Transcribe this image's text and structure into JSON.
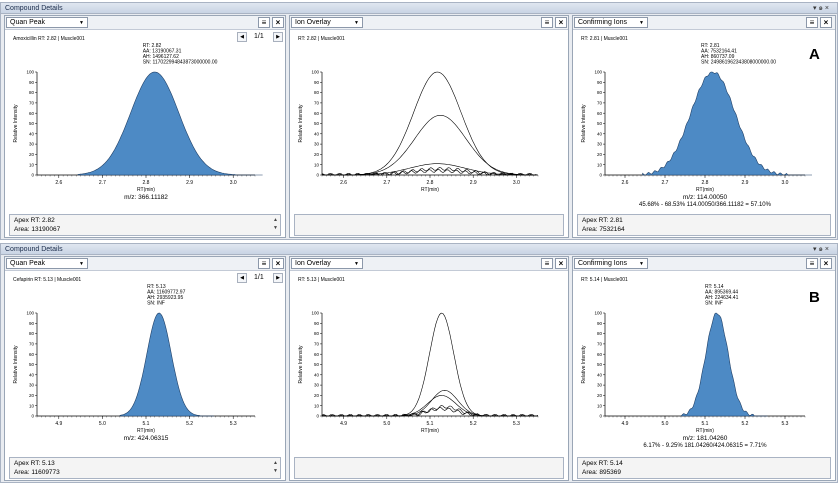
{
  "sections": [
    {
      "id": "A",
      "title": "Compound Details",
      "controls": "▾ ๑ ×",
      "letter": "A",
      "quan": {
        "dropdown": "Quan Peak",
        "page": "1/1",
        "header": "Amoxicillin  RT: 2.82 | Muscle001",
        "annotations": [
          "RT: 2.82",
          "AA: 13190067.31",
          "AH: 1496127.62",
          "SN: 117022994843873000000.00"
        ],
        "y_label": "Relative Intensity",
        "x_label": "RT(min)",
        "mz": "m/z: 366.11182",
        "info": [
          "Apex RT: 2.82",
          "Area: 13190067"
        ]
      },
      "overlay": {
        "dropdown": "Ion Overlay",
        "header": "RT: 2.82 | Muscle001",
        "y_label": "Relative Intensity",
        "x_label": "RT(min)"
      },
      "confirm": {
        "dropdown": "Confirming Ions",
        "header": "RT: 2.81 | Muscle001",
        "annotations": [
          "RT: 2.81",
          "AA: 7532164.41",
          "AH: 860737.09",
          "SN: 249861962343808000000.00"
        ],
        "y_label": "Relative Intensity",
        "x_label": "RT(min)",
        "mz": "m/z: 114.00050",
        "ratio": "45.68% - 68.53% 114.00050/366.11182 = 57.10%",
        "info": [
          "Apex RT: 2.81",
          "Area: 7532164"
        ]
      },
      "chart_data": {
        "type": "line",
        "xlim": [
          2.55,
          3.05
        ],
        "ylim": [
          0,
          100
        ],
        "x_ticks": [
          "2.6",
          "2.7",
          "2.8",
          "2.9",
          "3.0"
        ],
        "y_ticks": [
          "0",
          "10",
          "20",
          "30",
          "40",
          "50",
          "60",
          "70",
          "80",
          "90",
          "100"
        ],
        "peak_rt": 2.82,
        "overlay_heights": [
          100,
          58,
          11,
          6,
          4
        ]
      }
    },
    {
      "id": "B",
      "title": "Compound Details",
      "controls": "▾ ๑ ×",
      "letter": "B",
      "quan": {
        "dropdown": "Quan Peak",
        "page": "1/1",
        "header": "Cefapirin  RT: 5.13 | Muscle001",
        "annotations": [
          "RT: 5.13",
          "AA: 11609772.97",
          "AH: 2935923.95",
          "SN: INF"
        ],
        "y_label": "Relative Intensity",
        "x_label": "RT(min)",
        "mz": "m/z: 424.06315",
        "info": [
          "Apex RT: 5.13",
          "Area: 11609773"
        ]
      },
      "overlay": {
        "dropdown": "Ion Overlay",
        "header": "RT: 5.13 | Muscle001",
        "y_label": "Relative Intensity",
        "x_label": "RT(min)"
      },
      "confirm": {
        "dropdown": "Confirming Ions",
        "header": "RT: 5.14 | Muscle001",
        "annotations": [
          "RT: 5.14",
          "AA: 895369.44",
          "AH: 224634.41",
          "SN: INF"
        ],
        "y_label": "Relative Intensity",
        "x_label": "RT(min)",
        "mz": "m/z: 181.04260",
        "ratio": "6.17% - 9.25% 181.04260/424.06315 = 7.71%",
        "info": [
          "Apex RT: 5.14",
          "Area: 895369"
        ]
      },
      "chart_data": {
        "type": "line",
        "xlim": [
          4.85,
          5.35
        ],
        "ylim": [
          0,
          100
        ],
        "x_ticks": [
          "4.9",
          "5.0",
          "5.1",
          "5.2",
          "5.3"
        ],
        "y_ticks": [
          "0",
          "10",
          "20",
          "30",
          "40",
          "50",
          "60",
          "70",
          "80",
          "90",
          "100"
        ],
        "peak_rt": 5.13,
        "overlay_heights": [
          100,
          25,
          20,
          9,
          7
        ]
      }
    }
  ]
}
